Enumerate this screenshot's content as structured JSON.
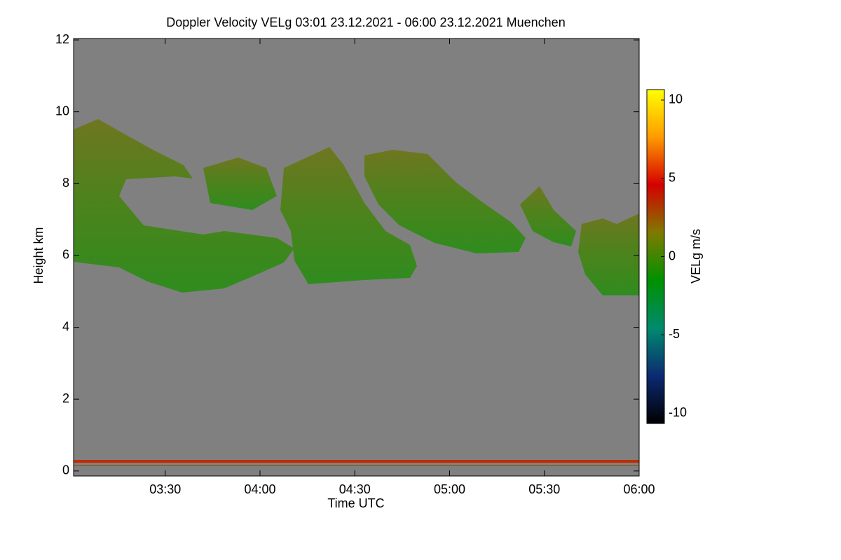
{
  "chart_data": {
    "type": "heatmap",
    "title": "Doppler Velocity VELg   03:01 23.12.2021 - 06:00 23.12.2021 Muenchen",
    "x_label": "Time UTC",
    "y_label": "Height km",
    "colorbar_label": "VELg m/s",
    "xlim": [
      181,
      360
    ],
    "xticks": [
      {
        "value": 210,
        "label": "03:30"
      },
      {
        "value": 240,
        "label": "04:00"
      },
      {
        "value": 270,
        "label": "04:30"
      },
      {
        "value": 300,
        "label": "05:00"
      },
      {
        "value": 330,
        "label": "05:30"
      },
      {
        "value": 360,
        "label": "06:00"
      }
    ],
    "ylim": [
      -0.14,
      12.04
    ],
    "yticks": [
      0,
      2,
      4,
      6,
      8,
      10,
      12
    ],
    "zlim": [
      -10.67,
      10.67
    ],
    "zticks": [
      -10,
      -5,
      0,
      5,
      10
    ],
    "colormap": [
      "#000000",
      "#0c2a72",
      "#008a6e",
      "#009100",
      "#7f7a00",
      "#d40000",
      "#ff9a00",
      "#ffff00"
    ],
    "background": "#808080"
  }
}
